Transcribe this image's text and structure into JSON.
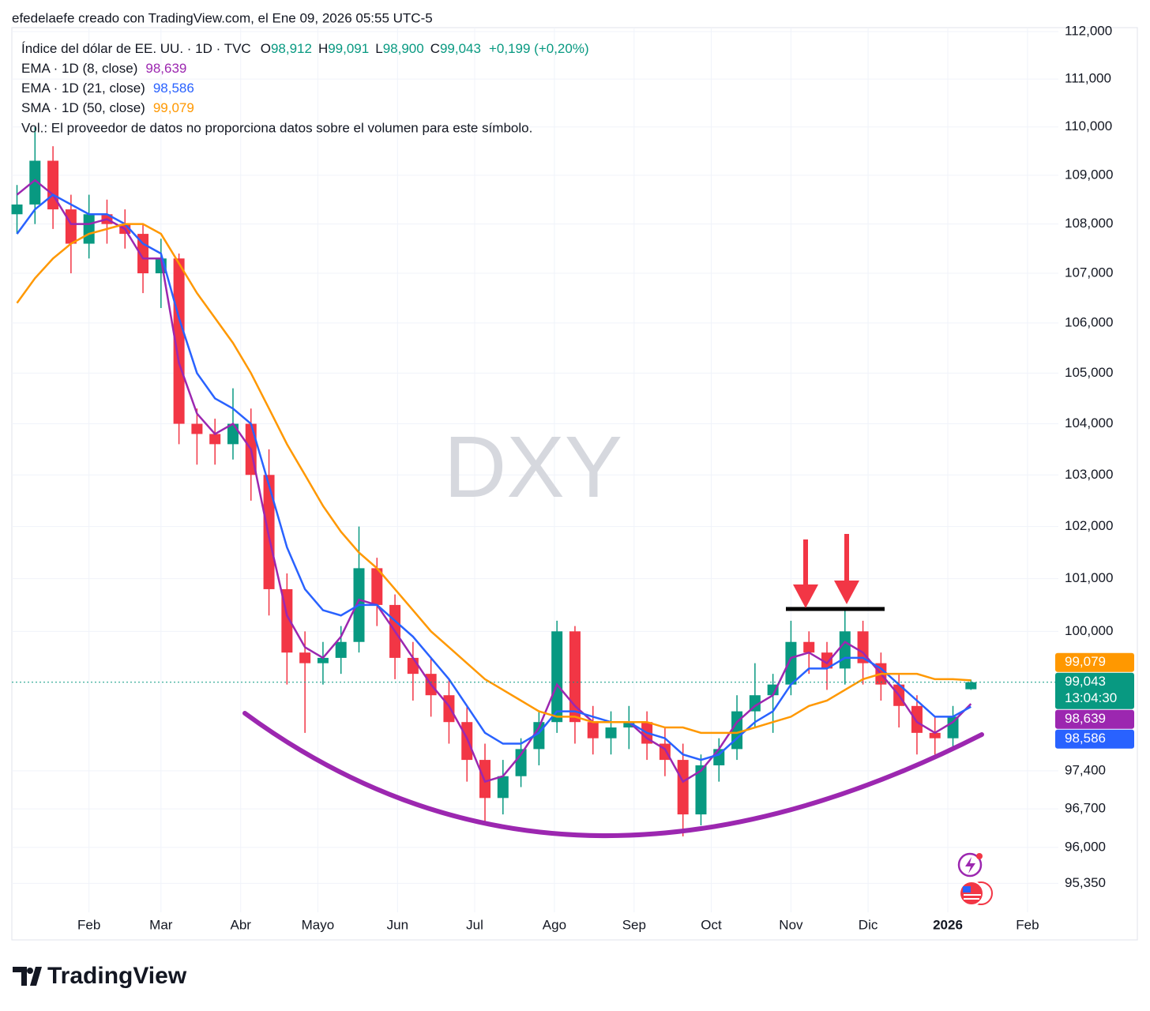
{
  "header": {
    "attribution": "efedelaefe creado con TradingView.com, el Ene 09, 2026 05:55 UTC-5"
  },
  "chart_data": {
    "type": "candlestick",
    "title": "Índice del dólar de EE. UU. · 1D · TVC",
    "ohlc_legend": [
      {
        "key": "O",
        "value": "98,912"
      },
      {
        "key": "H",
        "value": "99,091"
      },
      {
        "key": "L",
        "value": "98,900"
      },
      {
        "key": "C",
        "value": "99,043"
      }
    ],
    "change": "+0,199 (+0,20%)",
    "countdown": "13:04:30",
    "volume_note": "Vol.: El proveedor de datos no proporciona datos sobre el volumen para este símbolo.",
    "watermark": "DXY",
    "up_color": "#089981",
    "down_color": "#f23645",
    "log_scale": true,
    "grid": true,
    "x": [
      3,
      10,
      17,
      24,
      31,
      38,
      45,
      52,
      59,
      66,
      73,
      80,
      87,
      94,
      101,
      108,
      115,
      122,
      129,
      136,
      143,
      150,
      157,
      164,
      171,
      178,
      185,
      192,
      199,
      206,
      213,
      220,
      227,
      234,
      241,
      248,
      255,
      262,
      269,
      276,
      283,
      290,
      297,
      304,
      311,
      318,
      325,
      332,
      339,
      346,
      353,
      360,
      367,
      374
    ],
    "open": [
      108.2,
      108.4,
      109.3,
      108.3,
      107.6,
      108.2,
      108.0,
      107.8,
      107.0,
      107.3,
      104.0,
      103.8,
      103.6,
      104.0,
      103.0,
      100.8,
      99.6,
      99.4,
      99.5,
      99.8,
      101.2,
      100.5,
      99.5,
      99.2,
      98.8,
      98.3,
      97.6,
      96.9,
      97.3,
      97.8,
      98.3,
      100.0,
      98.3,
      98.0,
      98.2,
      98.3,
      97.9,
      97.6,
      96.6,
      97.5,
      97.8,
      98.5,
      98.8,
      99.0,
      99.8,
      99.6,
      99.3,
      100.0,
      99.4,
      99.0,
      98.6,
      98.1,
      98.0,
      98.912
    ],
    "high": [
      108.8,
      110.0,
      109.6,
      108.6,
      108.6,
      108.5,
      108.3,
      108.0,
      107.7,
      107.4,
      104.3,
      104.1,
      104.7,
      104.3,
      103.5,
      101.1,
      100.0,
      99.8,
      100.1,
      102.0,
      101.4,
      100.7,
      99.8,
      99.5,
      99.1,
      98.6,
      97.9,
      97.6,
      98.0,
      98.5,
      100.2,
      100.1,
      98.6,
      98.5,
      98.6,
      98.5,
      98.2,
      97.9,
      97.7,
      98.0,
      98.8,
      99.4,
      99.2,
      100.2,
      100.0,
      99.8,
      100.4,
      100.2,
      99.6,
      99.2,
      98.8,
      98.4,
      98.6,
      99.091
    ],
    "low": [
      107.8,
      108.0,
      107.9,
      107.0,
      107.3,
      107.6,
      107.5,
      106.6,
      106.3,
      103.6,
      103.2,
      103.2,
      103.3,
      102.5,
      100.3,
      99.0,
      98.1,
      99.0,
      99.2,
      99.6,
      100.1,
      99.1,
      98.7,
      98.4,
      97.9,
      97.2,
      96.4,
      96.6,
      97.1,
      97.5,
      98.1,
      97.9,
      97.7,
      97.7,
      97.8,
      97.6,
      97.3,
      96.2,
      96.4,
      97.2,
      97.6,
      98.2,
      98.1,
      98.8,
      99.2,
      98.9,
      99.0,
      99.0,
      98.7,
      98.2,
      97.7,
      97.7,
      97.8,
      98.9
    ],
    "close": [
      108.4,
      109.3,
      108.3,
      107.6,
      108.2,
      108.0,
      107.8,
      107.0,
      107.3,
      104.0,
      103.8,
      103.6,
      104.0,
      103.0,
      100.8,
      99.6,
      99.4,
      99.5,
      99.8,
      101.2,
      100.5,
      99.5,
      99.2,
      98.8,
      98.3,
      97.6,
      96.9,
      97.3,
      97.8,
      98.3,
      100.0,
      98.3,
      98.0,
      98.2,
      98.3,
      97.9,
      97.6,
      96.6,
      97.5,
      97.8,
      98.5,
      98.8,
      99.0,
      99.8,
      99.6,
      99.3,
      100.0,
      99.4,
      99.0,
      98.6,
      98.1,
      98.0,
      98.4,
      99.043
    ],
    "series": [
      {
        "name": "EMA · 1D (8, close)",
        "color": "#9c27b0",
        "value_label": "98,639",
        "values": [
          108.6,
          108.9,
          108.6,
          108.0,
          108.0,
          108.1,
          107.9,
          107.3,
          107.3,
          105.2,
          104.2,
          103.8,
          104.0,
          103.5,
          101.8,
          100.3,
          99.7,
          99.5,
          99.9,
          100.6,
          100.5,
          100.0,
          99.5,
          99.0,
          98.6,
          98.0,
          97.2,
          97.3,
          97.7,
          98.2,
          99.0,
          98.6,
          98.3,
          98.3,
          98.3,
          98.0,
          97.8,
          97.2,
          97.4,
          97.8,
          98.3,
          98.6,
          98.8,
          99.5,
          99.6,
          99.4,
          99.8,
          99.6,
          99.2,
          98.8,
          98.3,
          98.1,
          98.3,
          98.639
        ]
      },
      {
        "name": "EMA · 1D (21, close)",
        "color": "#2962ff",
        "value_label": "98,586",
        "values": [
          107.8,
          108.3,
          108.6,
          108.4,
          108.2,
          108.2,
          108.0,
          107.6,
          107.4,
          106.1,
          105.0,
          104.5,
          104.3,
          104.0,
          102.8,
          101.6,
          100.8,
          100.4,
          100.3,
          100.5,
          100.5,
          100.2,
          99.9,
          99.5,
          99.1,
          98.6,
          98.1,
          97.9,
          97.9,
          98.1,
          98.5,
          98.5,
          98.4,
          98.3,
          98.3,
          98.1,
          98.0,
          97.7,
          97.6,
          97.7,
          98.0,
          98.3,
          98.5,
          99.0,
          99.3,
          99.3,
          99.5,
          99.5,
          99.3,
          99.0,
          98.7,
          98.4,
          98.4,
          98.586
        ]
      },
      {
        "name": "SMA · 1D (50, close)",
        "color": "#ff9800",
        "value_label": "99,079",
        "values": [
          106.4,
          106.9,
          107.3,
          107.6,
          107.8,
          107.9,
          108.0,
          108.0,
          107.8,
          107.2,
          106.6,
          106.1,
          105.6,
          105.0,
          104.3,
          103.6,
          103.0,
          102.4,
          101.9,
          101.5,
          101.2,
          100.8,
          100.4,
          100.0,
          99.7,
          99.4,
          99.1,
          98.9,
          98.7,
          98.5,
          98.4,
          98.4,
          98.3,
          98.3,
          98.3,
          98.3,
          98.2,
          98.2,
          98.1,
          98.1,
          98.1,
          98.2,
          98.3,
          98.4,
          98.6,
          98.7,
          98.9,
          99.1,
          99.2,
          99.2,
          99.2,
          99.1,
          99.1,
          99.079
        ]
      }
    ],
    "xlim": [
      1,
      408
    ],
    "xticks": [
      {
        "value": 31,
        "label": "Feb"
      },
      {
        "value": 59,
        "label": "Mar"
      },
      {
        "value": 90,
        "label": "Abr"
      },
      {
        "value": 120,
        "label": "Mayo"
      },
      {
        "value": 151,
        "label": "Jun"
      },
      {
        "value": 181,
        "label": "Jul"
      },
      {
        "value": 212,
        "label": "Ago"
      },
      {
        "value": 243,
        "label": "Sep"
      },
      {
        "value": 273,
        "label": "Oct"
      },
      {
        "value": 304,
        "label": "Nov"
      },
      {
        "value": 334,
        "label": "Dic"
      },
      {
        "value": 365,
        "label": "2026"
      },
      {
        "value": 396,
        "label": "Feb"
      }
    ],
    "ylim": [
      94.83,
      112
    ],
    "yticks": [
      {
        "value": 112,
        "label": "112,000"
      },
      {
        "value": 111,
        "label": "111,000"
      },
      {
        "value": 110,
        "label": "110,000"
      },
      {
        "value": 109,
        "label": "109,000"
      },
      {
        "value": 108,
        "label": "108,000"
      },
      {
        "value": 107,
        "label": "107,000"
      },
      {
        "value": 106,
        "label": "106,000"
      },
      {
        "value": 105,
        "label": "105,000"
      },
      {
        "value": 104,
        "label": "104,000"
      },
      {
        "value": 103,
        "label": "103,000"
      },
      {
        "value": 102,
        "label": "102,000"
      },
      {
        "value": 101,
        "label": "101,000"
      },
      {
        "value": 100,
        "label": "100,000"
      },
      {
        "value": 97.4,
        "label": "97,400"
      },
      {
        "value": 96.7,
        "label": "96,700"
      },
      {
        "value": 96,
        "label": "96,000"
      },
      {
        "value": 95.35,
        "label": "95,350"
      }
    ]
  },
  "footer": {
    "brand": "TradingView"
  }
}
